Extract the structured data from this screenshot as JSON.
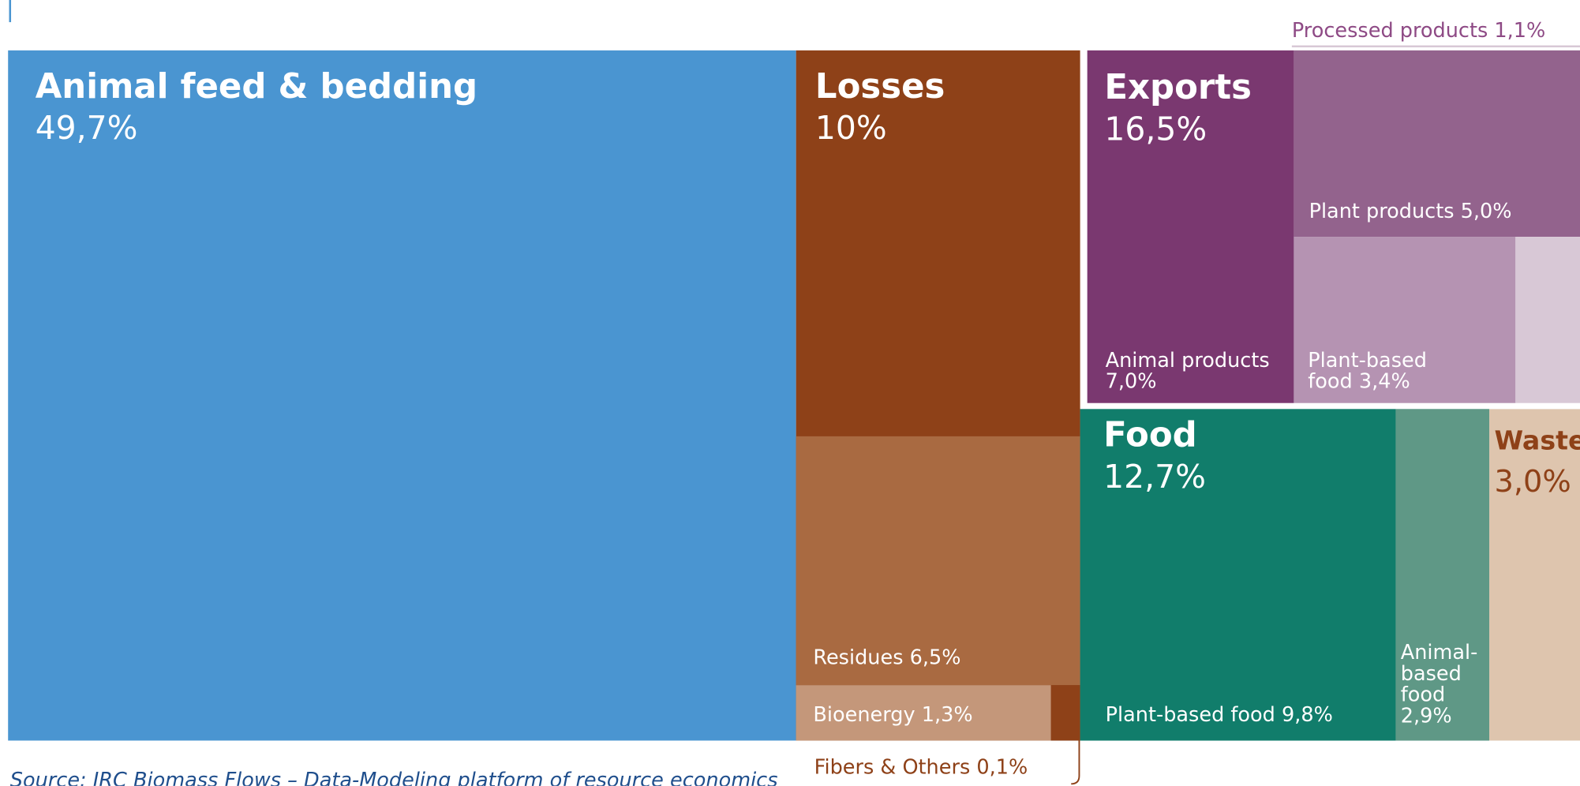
{
  "chart_data": {
    "type": "treemap",
    "source": "Source: JRC Biomass Flows – Data-Modeling platform of resource economics",
    "items": [
      {
        "name": "Animal feed & bedding",
        "value": 49.7,
        "value_label": "49,7%",
        "color": "#4a95d1"
      },
      {
        "name": "Losses",
        "value": 10,
        "value_label": "10%",
        "color": "#8e4118",
        "children": [
          {
            "name": "Residues",
            "value": 6.5,
            "value_label": "6,5%",
            "color": "#a96a41"
          },
          {
            "name": "Bioenergy",
            "value": 1.3,
            "value_label": "1,3%",
            "color": "#c4977a"
          },
          {
            "name": "Fibers & Others",
            "value": 0.1,
            "value_label": "0,1%",
            "color": "#8e4118"
          }
        ]
      },
      {
        "name": "Exports",
        "value": 16.5,
        "value_label": "16,5%",
        "color": "#ffffff",
        "children": [
          {
            "name": "Animal products",
            "value": 7.0,
            "value_label": "7,0%",
            "color": "#7a3870"
          },
          {
            "name": "Plant products",
            "value": 5.0,
            "value_label": "5,0%",
            "color": "#93638d"
          },
          {
            "name": "Plant-based food",
            "value": 3.4,
            "value_label": "3,4%",
            "color": "#b593b2"
          },
          {
            "name": "Processed products",
            "value": 1.1,
            "value_label": "1,1%",
            "color": "#d8c8d6"
          }
        ]
      },
      {
        "name": "Food",
        "value": 12.7,
        "value_label": "12,7%",
        "color": "#117d6b",
        "children": [
          {
            "name": "Plant-based food",
            "value": 9.8,
            "value_label": "9,8%",
            "color": "#117d6b"
          },
          {
            "name": "Animal-based food",
            "value": 2.9,
            "value_label": "2,9%",
            "color": "#5f9886"
          }
        ]
      },
      {
        "name": "Waste",
        "value": 3.0,
        "value_label": "3,0%",
        "color": "#dec5ae"
      }
    ]
  }
}
